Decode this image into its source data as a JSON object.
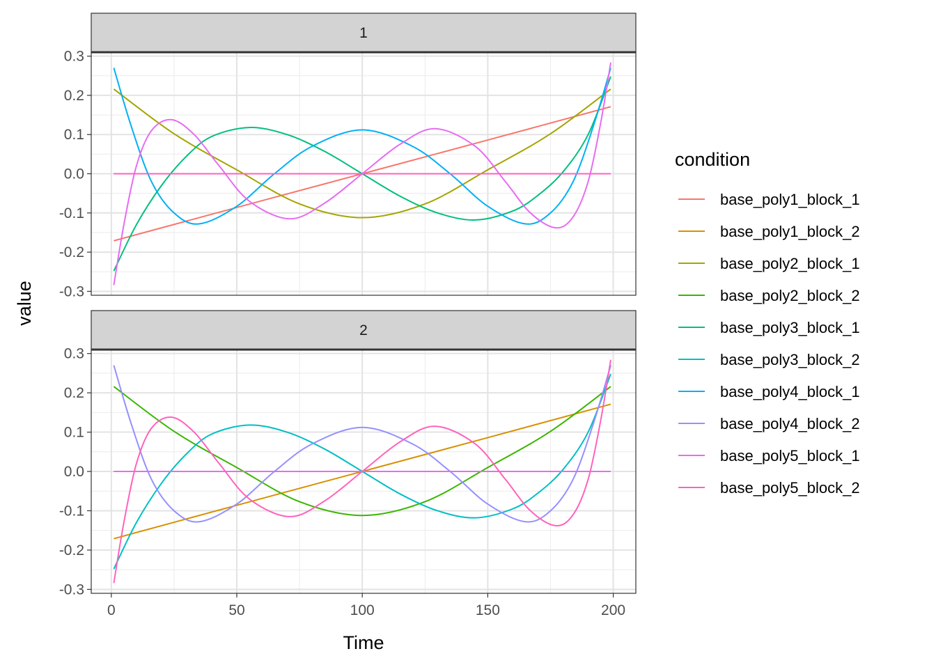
{
  "chart_data": {
    "type": "line",
    "xlabel": "Time",
    "ylabel": "value",
    "xlim": [
      -8,
      209
    ],
    "ylim": [
      -0.31,
      0.31
    ],
    "x_ticks": [
      0,
      50,
      100,
      150,
      200
    ],
    "y_ticks": [
      -0.3,
      -0.2,
      -0.1,
      0.0,
      0.1,
      0.2,
      0.3
    ],
    "x_tick_labels": [
      "0",
      "50",
      "100",
      "150",
      "200"
    ],
    "y_tick_labels": [
      "-0.3",
      "-0.2",
      "-0.1",
      "0.0",
      "0.1",
      "0.2",
      "0.3"
    ],
    "grid": true,
    "legend": {
      "title": "condition",
      "placement": "right",
      "entries": [
        {
          "name": "base_poly1_block_1",
          "color": "#F8766D"
        },
        {
          "name": "base_poly1_block_2",
          "color": "#D89000"
        },
        {
          "name": "base_poly2_block_1",
          "color": "#A3A500"
        },
        {
          "name": "base_poly2_block_2",
          "color": "#39B600"
        },
        {
          "name": "base_poly3_block_1",
          "color": "#00BF7D"
        },
        {
          "name": "base_poly3_block_2",
          "color": "#00BFC4"
        },
        {
          "name": "base_poly4_block_1",
          "color": "#00B0F6"
        },
        {
          "name": "base_poly4_block_2",
          "color": "#9590FF"
        },
        {
          "name": "base_poly5_block_1",
          "color": "#E76BF3"
        },
        {
          "name": "base_poly5_block_2",
          "color": "#FF62BC"
        }
      ]
    },
    "facets": [
      {
        "label": "1",
        "series": [
          {
            "name": "base_poly1_block_1",
            "color": "#F8766D",
            "x": [
              1,
              50,
              100,
              150,
              199
            ],
            "y": [
              -0.171,
              -0.086,
              0.0,
              0.086,
              0.171
            ]
          },
          {
            "name": "base_poly1_block_2",
            "color": "#D89000",
            "x": [
              1,
              199
            ],
            "y": [
              0.0,
              0.0
            ]
          },
          {
            "name": "base_poly2_block_1",
            "color": "#A3A500",
            "x": [
              1,
              25,
              50,
              75,
              100,
              125,
              150,
              175,
              199
            ],
            "y": [
              0.216,
              0.102,
              0.01,
              -0.077,
              -0.112,
              -0.077,
              0.01,
              0.102,
              0.216
            ]
          },
          {
            "name": "base_poly2_block_2",
            "color": "#39B600",
            "x": [
              1,
              199
            ],
            "y": [
              0.0,
              0.0
            ]
          },
          {
            "name": "base_poly3_block_1",
            "color": "#00BF7D",
            "x": [
              1,
              10,
              20,
              30,
              40,
              55,
              70,
              85,
              100,
              115,
              130,
              145,
              160,
              170,
              180,
              190,
              199
            ],
            "y": [
              -0.248,
              -0.13,
              -0.03,
              0.045,
              0.095,
              0.118,
              0.1,
              0.057,
              0.0,
              -0.057,
              -0.1,
              -0.118,
              -0.095,
              -0.055,
              0.005,
              0.1,
              0.248
            ]
          },
          {
            "name": "base_poly3_block_2",
            "color": "#00BFC4",
            "x": [
              1,
              199
            ],
            "y": [
              0.0,
              0.0
            ]
          },
          {
            "name": "base_poly4_block_1",
            "color": "#00B0F6",
            "x": [
              1,
              8,
              16,
              25,
              35,
              50,
              65,
              80,
              100,
              120,
              135,
              150,
              165,
              175,
              184,
              192,
              199
            ],
            "y": [
              0.27,
              0.12,
              -0.02,
              -0.1,
              -0.128,
              -0.083,
              0.0,
              0.07,
              0.112,
              0.07,
              0.0,
              -0.083,
              -0.128,
              -0.1,
              -0.02,
              0.12,
              0.27
            ]
          },
          {
            "name": "base_poly4_block_2",
            "color": "#9590FF",
            "x": [
              1,
              199
            ],
            "y": [
              0.0,
              0.0
            ]
          },
          {
            "name": "base_poly5_block_1",
            "color": "#E76BF3",
            "x": [
              1,
              5,
              10,
              16,
              24,
              33,
              43,
              55,
              71,
              85,
              100,
              115,
              129,
              145,
              157,
              167,
              177,
              184,
              190,
              195,
              199
            ],
            "y": [
              -0.284,
              -0.13,
              0.02,
              0.11,
              0.138,
              0.1,
              0.02,
              -0.07,
              -0.115,
              -0.075,
              0.0,
              0.075,
              0.115,
              0.07,
              -0.02,
              -0.1,
              -0.138,
              -0.11,
              -0.02,
              0.13,
              0.284
            ]
          },
          {
            "name": "base_poly5_block_2",
            "color": "#FF62BC",
            "x": [
              1,
              199
            ],
            "y": [
              0.0,
              0.0
            ]
          }
        ]
      },
      {
        "label": "2",
        "series": [
          {
            "name": "base_poly1_block_1",
            "color": "#F8766D",
            "x": [
              1,
              199
            ],
            "y": [
              0.0,
              0.0
            ]
          },
          {
            "name": "base_poly1_block_2",
            "color": "#D89000",
            "x": [
              1,
              50,
              100,
              150,
              199
            ],
            "y": [
              -0.171,
              -0.086,
              0.0,
              0.086,
              0.171
            ]
          },
          {
            "name": "base_poly2_block_1",
            "color": "#A3A500",
            "x": [
              1,
              199
            ],
            "y": [
              0.0,
              0.0
            ]
          },
          {
            "name": "base_poly2_block_2",
            "color": "#39B600",
            "x": [
              1,
              25,
              50,
              75,
              100,
              125,
              150,
              175,
              199
            ],
            "y": [
              0.216,
              0.102,
              0.01,
              -0.077,
              -0.112,
              -0.077,
              0.01,
              0.102,
              0.216
            ]
          },
          {
            "name": "base_poly3_block_1",
            "color": "#00BF7D",
            "x": [
              1,
              199
            ],
            "y": [
              0.0,
              0.0
            ]
          },
          {
            "name": "base_poly3_block_2",
            "color": "#00BFC4",
            "x": [
              1,
              10,
              20,
              30,
              40,
              55,
              70,
              85,
              100,
              115,
              130,
              145,
              160,
              170,
              180,
              190,
              199
            ],
            "y": [
              -0.248,
              -0.13,
              -0.03,
              0.045,
              0.095,
              0.118,
              0.1,
              0.057,
              0.0,
              -0.057,
              -0.1,
              -0.118,
              -0.095,
              -0.055,
              0.005,
              0.1,
              0.248
            ]
          },
          {
            "name": "base_poly4_block_1",
            "color": "#00B0F6",
            "x": [
              1,
              199
            ],
            "y": [
              0.0,
              0.0
            ]
          },
          {
            "name": "base_poly4_block_2",
            "color": "#9590FF",
            "x": [
              1,
              8,
              16,
              25,
              35,
              50,
              65,
              80,
              100,
              120,
              135,
              150,
              165,
              175,
              184,
              192,
              199
            ],
            "y": [
              0.27,
              0.12,
              -0.02,
              -0.1,
              -0.128,
              -0.083,
              0.0,
              0.07,
              0.112,
              0.07,
              0.0,
              -0.083,
              -0.128,
              -0.1,
              -0.02,
              0.12,
              0.27
            ]
          },
          {
            "name": "base_poly5_block_1",
            "color": "#E76BF3",
            "x": [
              1,
              199
            ],
            "y": [
              0.0,
              0.0
            ]
          },
          {
            "name": "base_poly5_block_2",
            "color": "#FF62BC",
            "x": [
              1,
              5,
              10,
              16,
              24,
              33,
              43,
              55,
              71,
              85,
              100,
              115,
              129,
              145,
              157,
              167,
              177,
              184,
              190,
              195,
              199
            ],
            "y": [
              -0.284,
              -0.13,
              0.02,
              0.11,
              0.138,
              0.1,
              0.02,
              -0.07,
              -0.115,
              -0.075,
              0.0,
              0.075,
              0.115,
              0.07,
              -0.02,
              -0.1,
              -0.138,
              -0.11,
              -0.02,
              0.13,
              0.284
            ]
          }
        ]
      }
    ]
  }
}
